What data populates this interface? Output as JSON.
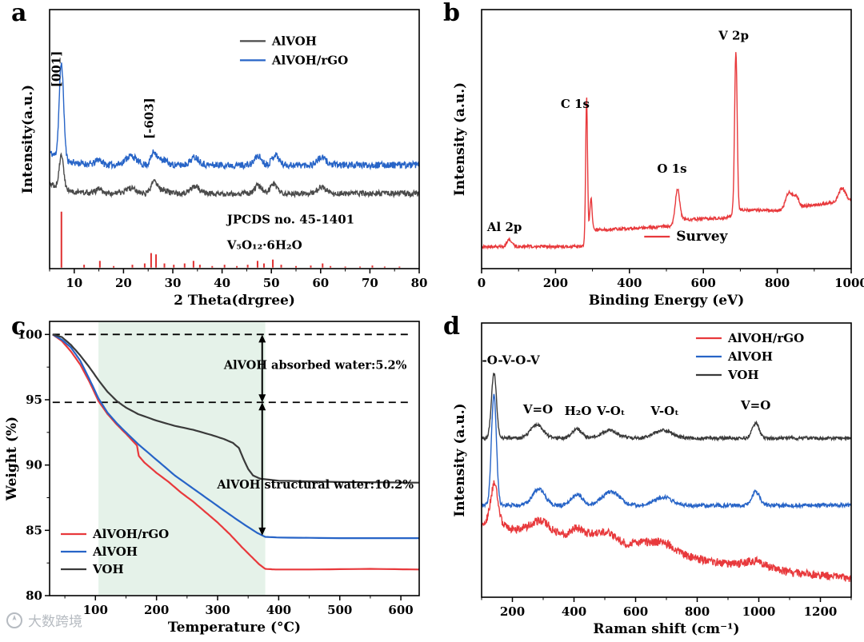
{
  "figure": {
    "watermark": {
      "text": "大数跨境",
      "icon": "compass-logo",
      "color": "#b6bbc1"
    }
  },
  "chart_data": [
    {
      "id": "xrd",
      "panel_label": "a",
      "type": "line",
      "kind": "spectrum",
      "xlabel": "2 Theta(drgree)",
      "ylabel": "Intensity(a.u.)",
      "xlim": [
        5,
        80
      ],
      "xticks": [
        10,
        20,
        30,
        40,
        50,
        60,
        70,
        80
      ],
      "xminor": [
        5,
        10
      ],
      "legend": {
        "fx": 0.515,
        "fy": 0.1,
        "row": 24,
        "items": [
          {
            "label": "AlVOH",
            "color": "#4a4a4a"
          },
          {
            "label": "AlVOH/rGO",
            "color": "#2764c7"
          }
        ]
      },
      "annotations": [
        {
          "text": "[001]",
          "x": 7.2,
          "yfrac": 0.7,
          "rotate": true
        },
        {
          "text": "[-603]",
          "x": 26.0,
          "yfrac": 0.5,
          "rotate": true
        }
      ],
      "reference_label": {
        "lines": [
          "JPCDS no. 45-1401",
          "V₅O₁₂·6H₂O"
        ],
        "x": 41,
        "yfracs": [
          0.175,
          0.075
        ]
      },
      "series": [
        {
          "name": "AlVOH/rGO",
          "color": "#2764c7",
          "offset": 0.4,
          "noise": 0.013,
          "start_decay": 0.05,
          "peaks": [
            [
              7.4,
              0.37,
              0.45
            ],
            [
              15,
              0.02,
              0.6
            ],
            [
              21.5,
              0.035,
              1.1
            ],
            [
              26.2,
              0.05,
              0.6
            ],
            [
              28,
              0.02,
              0.8
            ],
            [
              34.5,
              0.03,
              0.9
            ],
            [
              47.3,
              0.035,
              0.7
            ],
            [
              50.8,
              0.04,
              0.7
            ],
            [
              60.2,
              0.028,
              0.9
            ]
          ]
        },
        {
          "name": "AlVOH",
          "color": "#4a4a4a",
          "offset": 0.29,
          "noise": 0.011,
          "start_decay": 0.04,
          "peaks": [
            [
              7.4,
              0.13,
              0.45
            ],
            [
              15,
              0.015,
              0.6
            ],
            [
              21.5,
              0.02,
              1.0
            ],
            [
              26.2,
              0.045,
              0.6
            ],
            [
              28,
              0.015,
              0.8
            ],
            [
              34.5,
              0.03,
              0.9
            ],
            [
              47.3,
              0.03,
              0.7
            ],
            [
              50.5,
              0.035,
              0.7
            ],
            [
              60.2,
              0.025,
              0.9
            ]
          ]
        }
      ],
      "reference_sticks": {
        "color": "#e03131",
        "label": "JPCDS no. 45-1401 V₅O₁₂·6H₂O",
        "sticks": [
          [
            7.4,
            0.22
          ],
          [
            12,
            0.015
          ],
          [
            15.2,
            0.03
          ],
          [
            18,
            0.01
          ],
          [
            21.8,
            0.015
          ],
          [
            24.3,
            0.02
          ],
          [
            25.6,
            0.06
          ],
          [
            26.6,
            0.055
          ],
          [
            28.3,
            0.02
          ],
          [
            30.2,
            0.015
          ],
          [
            32.4,
            0.02
          ],
          [
            34.2,
            0.03
          ],
          [
            35.5,
            0.015
          ],
          [
            38,
            0.01
          ],
          [
            40.5,
            0.015
          ],
          [
            43,
            0.01
          ],
          [
            45.2,
            0.015
          ],
          [
            47.2,
            0.03
          ],
          [
            48.5,
            0.02
          ],
          [
            50.3,
            0.035
          ],
          [
            52,
            0.015
          ],
          [
            55,
            0.01
          ],
          [
            58,
            0.012
          ],
          [
            60.4,
            0.02
          ],
          [
            62,
            0.01
          ],
          [
            65,
            0.008
          ],
          [
            68,
            0.008
          ],
          [
            70.5,
            0.012
          ],
          [
            73,
            0.008
          ],
          [
            76,
            0.008
          ]
        ]
      }
    },
    {
      "id": "xps",
      "panel_label": "b",
      "type": "line",
      "kind": "spectrum",
      "xlabel": "Binding Energy (eV)",
      "ylabel": "Intensity (a.u.)",
      "xlim": [
        0,
        1000
      ],
      "xticks": [
        0,
        200,
        400,
        600,
        800,
        1000
      ],
      "xminor": [
        100,
        200
      ],
      "legend": {
        "fx": 0.44,
        "fy": 0.855,
        "row": 24,
        "size": 17,
        "items": [
          {
            "label": "Survey",
            "color": "#e8393c"
          }
        ]
      },
      "annotations": [
        {
          "text": "Al 2p",
          "x": 62,
          "yfrac": 0.145
        },
        {
          "text": "C 1s",
          "x": 253,
          "yfrac": 0.62
        },
        {
          "text": "O 1s",
          "x": 515,
          "yfrac": 0.37
        },
        {
          "text": "V 2p",
          "x": 682,
          "yfrac": 0.885
        }
      ],
      "series": [
        {
          "name": "Survey",
          "color": "#e8393c",
          "noise": 0.006,
          "baseline": [
            [
              0,
              0.085
            ],
            [
              270,
              0.085
            ],
            [
              282,
              0.095
            ],
            [
              292,
              0.15
            ],
            [
              420,
              0.155
            ],
            [
              515,
              0.165
            ],
            [
              545,
              0.19
            ],
            [
              660,
              0.195
            ],
            [
              700,
              0.225
            ],
            [
              810,
              0.225
            ],
            [
              870,
              0.24
            ],
            [
              1000,
              0.265
            ]
          ],
          "peaks": [
            [
              75,
              0.028,
              7
            ],
            [
              284,
              0.56,
              2.5
            ],
            [
              296,
              0.12,
              3
            ],
            [
              530,
              0.13,
              6
            ],
            [
              688,
              0.62,
              3.5
            ],
            [
              832,
              0.065,
              9
            ],
            [
              852,
              0.04,
              7
            ],
            [
              975,
              0.05,
              9
            ]
          ]
        }
      ]
    },
    {
      "id": "tga",
      "panel_label": "c",
      "type": "line",
      "kind": "tga",
      "xlabel": "Temperature (°C)",
      "ylabel": "Weight (%)",
      "xlim": [
        25,
        630
      ],
      "ylim": [
        80,
        101
      ],
      "xticks": [
        100,
        200,
        300,
        400,
        500,
        600
      ],
      "xminor": [
        50,
        100
      ],
      "yticks": [
        80,
        85,
        90,
        95,
        100
      ],
      "yminor": [
        82.5,
        5
      ],
      "shaded_region": {
        "x0": 105,
        "x1": 378,
        "color": "#e5f2e9"
      },
      "dashed_lines": [
        {
          "y": 100
        },
        {
          "y": 94.8
        }
      ],
      "dash_x": [
        30,
        618
      ],
      "arrows": [
        {
          "x": 373,
          "y0": 100,
          "y1": 94.8
        },
        {
          "x": 373,
          "y0": 94.8,
          "y1": 84.6
        }
      ],
      "annotations": [
        {
          "text": "AlVOH absorbed water:5.2%",
          "x": 460,
          "y": 97.35
        },
        {
          "text": "AlVOH structural water:10.2%",
          "x": 460,
          "y": 88.2
        }
      ],
      "legend": {
        "items": [
          {
            "label": "AlVOH/rGO",
            "color": "#e8393c"
          },
          {
            "label": "AlVOH",
            "color": "#2764c7"
          },
          {
            "label": "VOH",
            "color": "#3a3a3a"
          }
        ]
      },
      "series": [
        {
          "name": "AlVOH/rGO",
          "color": "#e8393c",
          "points": [
            [
              30,
              100
            ],
            [
              45,
              99.5
            ],
            [
              60,
              98.7
            ],
            [
              75,
              97.7
            ],
            [
              90,
              96.4
            ],
            [
              105,
              94.9
            ],
            [
              120,
              93.9
            ],
            [
              135,
              93.1
            ],
            [
              150,
              92.4
            ],
            [
              160,
              91.9
            ],
            [
              168,
              91.5
            ],
            [
              171,
              90.7
            ],
            [
              180,
              90.2
            ],
            [
              200,
              89.4
            ],
            [
              220,
              88.7
            ],
            [
              240,
              87.9
            ],
            [
              260,
              87.2
            ],
            [
              280,
              86.4
            ],
            [
              300,
              85.6
            ],
            [
              320,
              84.7
            ],
            [
              340,
              83.7
            ],
            [
              355,
              83.0
            ],
            [
              368,
              82.4
            ],
            [
              378,
              82.05
            ],
            [
              395,
              82.0
            ],
            [
              450,
              82.0
            ],
            [
              550,
              82.05
            ],
            [
              630,
              82.0
            ]
          ]
        },
        {
          "name": "AlVOH",
          "color": "#2764c7",
          "points": [
            [
              30,
              100
            ],
            [
              45,
              99.6
            ],
            [
              60,
              99.0
            ],
            [
              75,
              98.0
            ],
            [
              90,
              96.6
            ],
            [
              105,
              95.1
            ],
            [
              120,
              94.0
            ],
            [
              135,
              93.2
            ],
            [
              150,
              92.5
            ],
            [
              170,
              91.6
            ],
            [
              200,
              90.4
            ],
            [
              230,
              89.2
            ],
            [
              260,
              88.2
            ],
            [
              290,
              87.2
            ],
            [
              320,
              86.2
            ],
            [
              345,
              85.4
            ],
            [
              365,
              84.8
            ],
            [
              378,
              84.5
            ],
            [
              400,
              84.45
            ],
            [
              500,
              84.4
            ],
            [
              630,
              84.4
            ]
          ]
        },
        {
          "name": "VOH",
          "color": "#3a3a3a",
          "points": [
            [
              30,
              100
            ],
            [
              45,
              99.8
            ],
            [
              60,
              99.2
            ],
            [
              75,
              98.4
            ],
            [
              90,
              97.5
            ],
            [
              105,
              96.5
            ],
            [
              120,
              95.6
            ],
            [
              135,
              94.9
            ],
            [
              150,
              94.4
            ],
            [
              170,
              93.9
            ],
            [
              200,
              93.4
            ],
            [
              230,
              93.0
            ],
            [
              260,
              92.7
            ],
            [
              290,
              92.3
            ],
            [
              310,
              92.0
            ],
            [
              325,
              91.7
            ],
            [
              335,
              91.3
            ],
            [
              342,
              90.5
            ],
            [
              350,
              89.7
            ],
            [
              358,
              89.2
            ],
            [
              370,
              88.95
            ],
            [
              400,
              88.8
            ],
            [
              500,
              88.7
            ],
            [
              630,
              88.65
            ]
          ]
        }
      ]
    },
    {
      "id": "raman",
      "panel_label": "d",
      "type": "line",
      "kind": "spectrum",
      "xlabel": "Raman shift (cm⁻¹)",
      "ylabel": "Intensity (a.u.)",
      "xlim": [
        100,
        1300
      ],
      "xticks": [
        200,
        400,
        600,
        800,
        1000,
        1200
      ],
      "xminor": [
        100,
        200
      ],
      "legend": {
        "fx": 0.58,
        "fy": 0.035,
        "row": 23,
        "items": [
          {
            "label": "AlVOH/rGO",
            "color": "#e8393c"
          },
          {
            "label": "AlVOH",
            "color": "#2764c7"
          },
          {
            "label": "VOH",
            "color": "#3a3a3a"
          }
        ]
      },
      "annotations": [
        {
          "text": "-O-V-O-V",
          "x": 195,
          "yfrac": 0.85
        },
        {
          "text": "V=O",
          "x": 283,
          "yfrac": 0.67
        },
        {
          "text": "H₂O",
          "x": 413,
          "yfrac": 0.665
        },
        {
          "text": "V-Oₜ",
          "x": 520,
          "yfrac": 0.665
        },
        {
          "text": "V-Oₜ",
          "x": 695,
          "yfrac": 0.665
        },
        {
          "text": "V=O",
          "x": 990,
          "yfrac": 0.685
        }
      ],
      "series": [
        {
          "name": "VOH",
          "color": "#3a3a3a",
          "offset": 0.58,
          "noise": 0.006,
          "peaks": [
            [
              140,
              0.24,
              8
            ],
            [
              280,
              0.05,
              20
            ],
            [
              410,
              0.032,
              16
            ],
            [
              515,
              0.028,
              26
            ],
            [
              690,
              0.028,
              30
            ],
            [
              990,
              0.055,
              11
            ]
          ]
        },
        {
          "name": "AlVOH",
          "color": "#2764c7",
          "offset": 0.335,
          "noise": 0.007,
          "peaks": [
            [
              140,
              0.405,
              8
            ],
            [
              285,
              0.06,
              20
            ],
            [
              410,
              0.04,
              18
            ],
            [
              520,
              0.05,
              28
            ],
            [
              690,
              0.03,
              28
            ],
            [
              990,
              0.05,
              13
            ]
          ]
        },
        {
          "name": "AlVOH/rGO",
          "color": "#e8393c",
          "noise": 0.015,
          "baseline": [
            [
              100,
              0.275
            ],
            [
              250,
              0.235
            ],
            [
              400,
              0.21
            ],
            [
              550,
              0.185
            ],
            [
              700,
              0.16
            ],
            [
              850,
              0.13
            ],
            [
              1000,
              0.105
            ],
            [
              1150,
              0.085
            ],
            [
              1300,
              0.07
            ]
          ],
          "peaks": [
            [
              142,
              0.15,
              12
            ],
            [
              290,
              0.05,
              35
            ],
            [
              410,
              0.04,
              25
            ],
            [
              500,
              0.045,
              40
            ],
            [
              620,
              0.02,
              30
            ],
            [
              690,
              0.035,
              40
            ],
            [
              990,
              0.025,
              35
            ]
          ]
        }
      ]
    }
  ]
}
